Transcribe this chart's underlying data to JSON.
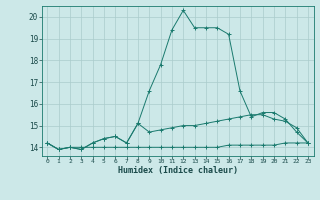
{
  "xlabel": "Humidex (Indice chaleur)",
  "x_ticks": [
    0,
    1,
    2,
    3,
    4,
    5,
    6,
    7,
    8,
    9,
    10,
    11,
    12,
    13,
    14,
    15,
    16,
    17,
    18,
    19,
    20,
    21,
    22,
    23
  ],
  "x_tick_labels": [
    "0",
    "1",
    "2",
    "3",
    "4",
    "5",
    "6",
    "7",
    "8",
    "9",
    "10",
    "11",
    "12",
    "13",
    "14",
    "15",
    "16",
    "17",
    "18",
    "19",
    "20",
    "21",
    "22",
    "23"
  ],
  "ylim": [
    13.6,
    20.5
  ],
  "xlim": [
    -0.5,
    23.5
  ],
  "y_ticks": [
    14,
    15,
    16,
    17,
    18,
    19,
    20
  ],
  "background_color": "#cce8e8",
  "grid_color": "#aacccc",
  "line_color": "#1a7a6e",
  "series1_x": [
    0,
    1,
    2,
    3,
    4,
    5,
    6,
    7,
    8,
    9,
    10,
    11,
    12,
    13,
    14,
    15,
    16,
    17,
    18,
    19,
    20,
    21,
    22,
    23
  ],
  "series1_y": [
    14.2,
    13.9,
    14.0,
    13.9,
    14.2,
    14.4,
    14.5,
    14.2,
    15.1,
    14.7,
    14.8,
    14.9,
    15.0,
    15.0,
    15.1,
    15.2,
    15.3,
    15.4,
    15.5,
    15.5,
    15.3,
    15.2,
    14.9,
    14.2
  ],
  "series2_x": [
    0,
    1,
    2,
    3,
    4,
    5,
    6,
    7,
    8,
    9,
    10,
    11,
    12,
    13,
    14,
    15,
    16,
    17,
    18,
    19,
    20,
    21,
    22,
    23
  ],
  "series2_y": [
    14.2,
    13.9,
    14.0,
    13.9,
    14.2,
    14.4,
    14.5,
    14.2,
    15.1,
    16.6,
    17.8,
    19.4,
    20.3,
    19.5,
    19.5,
    19.5,
    19.2,
    16.6,
    15.4,
    15.6,
    15.6,
    15.3,
    14.7,
    14.2
  ],
  "series3_x": [
    0,
    1,
    2,
    3,
    4,
    5,
    6,
    7,
    8,
    9,
    10,
    11,
    12,
    13,
    14,
    15,
    16,
    17,
    18,
    19,
    20,
    21,
    22,
    23
  ],
  "series3_y": [
    14.2,
    13.9,
    14.0,
    14.0,
    14.0,
    14.0,
    14.0,
    14.0,
    14.0,
    14.0,
    14.0,
    14.0,
    14.0,
    14.0,
    14.0,
    14.0,
    14.1,
    14.1,
    14.1,
    14.1,
    14.1,
    14.2,
    14.2,
    14.2
  ]
}
